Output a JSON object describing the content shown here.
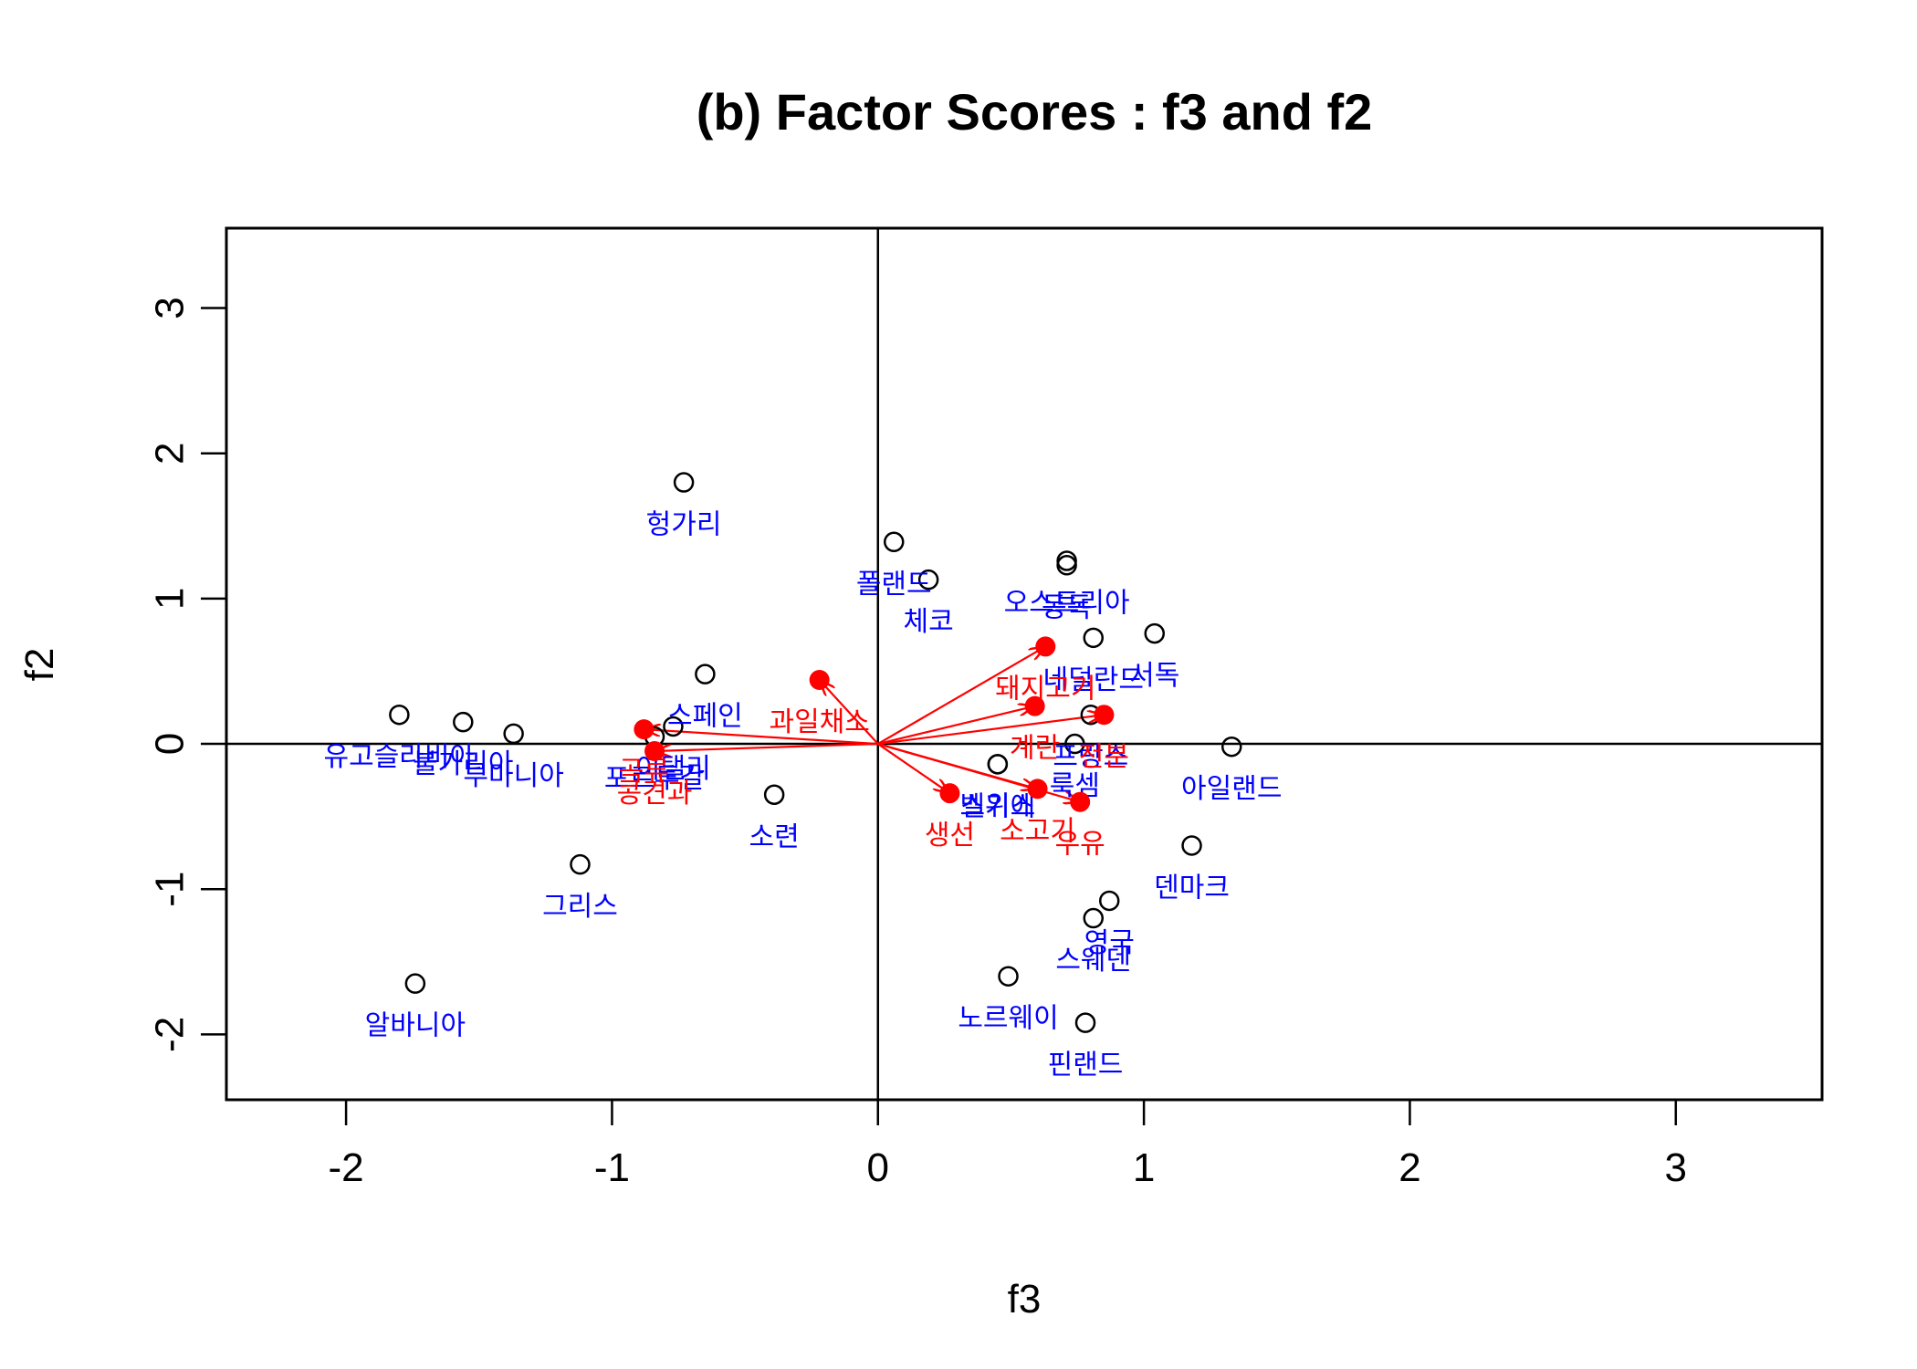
{
  "chart_data": {
    "type": "scatter",
    "title": "(b) Factor Scores : f3 and f2",
    "xlabel": "f3",
    "ylabel": "f2",
    "xlim": [
      -2.45,
      3.55
    ],
    "ylim": [
      -2.45,
      3.55
    ],
    "xticks": [
      -2,
      -1,
      0,
      1,
      2,
      3
    ],
    "yticks": [
      -2,
      -1,
      0,
      1,
      2,
      3
    ],
    "reference_lines": {
      "x": 0,
      "y": 0
    },
    "colors": {
      "points": "#000000",
      "country_labels": "#0000ff",
      "variables": "#ff0000"
    },
    "countries": [
      {
        "name": "헝가리",
        "x": -0.73,
        "y": 1.8
      },
      {
        "name": "폴랜드",
        "x": 0.06,
        "y": 1.39
      },
      {
        "name": "체코",
        "x": 0.19,
        "y": 1.13
      },
      {
        "name": "오스트리아",
        "x": 0.71,
        "y": 1.26
      },
      {
        "name": "동독",
        "x": 0.71,
        "y": 1.23
      },
      {
        "name": "네덜란드",
        "x": 0.81,
        "y": 0.73
      },
      {
        "name": "서독",
        "x": 1.04,
        "y": 0.76
      },
      {
        "name": "스페인",
        "x": -0.65,
        "y": 0.48
      },
      {
        "name": "유고슬라비아",
        "x": -1.8,
        "y": 0.2
      },
      {
        "name": "불가리아",
        "x": -1.56,
        "y": 0.15
      },
      {
        "name": "루마니아",
        "x": -1.37,
        "y": 0.07
      },
      {
        "name": "포르투갈",
        "x": -0.84,
        "y": 0.05
      },
      {
        "name": "이탤리",
        "x": -0.77,
        "y": 0.12
      },
      {
        "name": "소련",
        "x": -0.39,
        "y": -0.35
      },
      {
        "name": "벨기에",
        "x": 0.45,
        "y": -0.14
      },
      {
        "name": "룩셈",
        "x": 0.74,
        "y": 0.0
      },
      {
        "name": "프랑스",
        "x": 0.8,
        "y": 0.2
      },
      {
        "name": "스위스",
        "x": 0.45,
        "y": -0.14
      },
      {
        "name": "아일랜드",
        "x": 1.33,
        "y": -0.02
      },
      {
        "name": "덴마크",
        "x": 1.18,
        "y": -0.7
      },
      {
        "name": "그리스",
        "x": -1.12,
        "y": -0.83
      },
      {
        "name": "영국",
        "x": 0.87,
        "y": -1.08
      },
      {
        "name": "스웨덴",
        "x": 0.81,
        "y": -1.2
      },
      {
        "name": "노르웨이",
        "x": 0.49,
        "y": -1.6
      },
      {
        "name": "핀랜드",
        "x": 0.78,
        "y": -1.92
      },
      {
        "name": "알바니아",
        "x": -1.74,
        "y": -1.65
      }
    ],
    "variables": [
      {
        "name": "과일채소",
        "x": -0.22,
        "y": 0.44
      },
      {
        "name": "돼지고기",
        "x": 0.63,
        "y": 0.67
      },
      {
        "name": "계란",
        "x": 0.59,
        "y": 0.26
      },
      {
        "name": "전분",
        "x": 0.85,
        "y": 0.2
      },
      {
        "name": "곡류",
        "x": -0.88,
        "y": 0.1
      },
      {
        "name": "콩견과",
        "x": -0.84,
        "y": -0.05
      },
      {
        "name": "생선",
        "x": 0.27,
        "y": -0.34
      },
      {
        "name": "소고기",
        "x": 0.6,
        "y": -0.31
      },
      {
        "name": "우유",
        "x": 0.76,
        "y": -0.4
      }
    ]
  }
}
